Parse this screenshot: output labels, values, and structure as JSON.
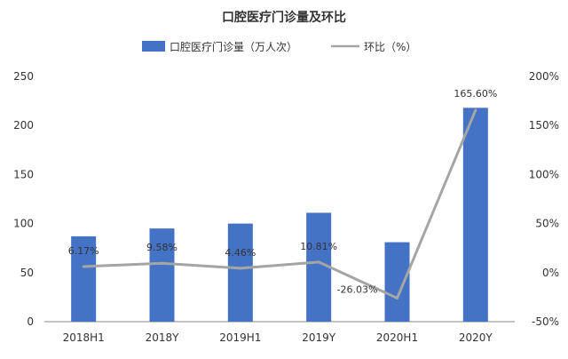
{
  "chart_data": {
    "type": "bar",
    "title": "口腔医疗门诊量及环比",
    "categories": [
      "2018H1",
      "2018Y",
      "2019H1",
      "2019Y",
      "2020H1",
      "2020Y"
    ],
    "series": [
      {
        "name": "口腔医疗门诊量（万人次）",
        "type": "bar",
        "axis": "left",
        "color": "#4472C4",
        "values": [
          87,
          95,
          100,
          111,
          81,
          218
        ]
      },
      {
        "name": "环比（%）",
        "type": "line",
        "axis": "right",
        "color": "#A5A5A5",
        "values": [
          6.17,
          9.58,
          4.46,
          10.81,
          -26.03,
          165.6
        ],
        "labels": [
          "6.17%",
          "9.58%",
          "4.46%",
          "10.81%",
          "-26.03%",
          "165.60%"
        ]
      }
    ],
    "y_left": {
      "ylim": [
        0,
        250
      ],
      "ticks": [
        "0",
        "50",
        "100",
        "150",
        "200",
        "250"
      ]
    },
    "y_right": {
      "ylim": [
        -50,
        200
      ],
      "ticks": [
        "-50%",
        "0%",
        "50%",
        "100%",
        "150%",
        "200%"
      ]
    },
    "grid": false,
    "legend_position": "top-center"
  }
}
